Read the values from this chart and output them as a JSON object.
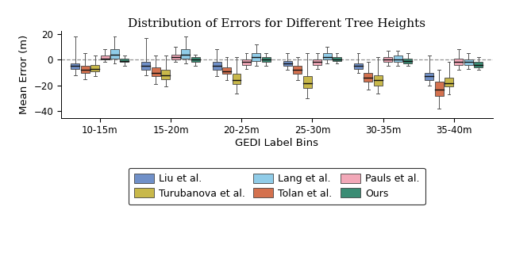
{
  "title": "Distribution of Errors for Different Tree Heights",
  "xlabel": "GEDI Label Bins",
  "ylabel": "Mean Error (m)",
  "ylim": [
    -45,
    22
  ],
  "yticks": [
    -40,
    -20,
    0,
    20
  ],
  "bins": [
    "10-15m",
    "15-20m",
    "20-25m",
    "25-30m",
    "30-35m",
    "35-40m"
  ],
  "methods": [
    "Liu et al.",
    "Tolan et al.",
    "Turubanova et al.",
    "Pauls et al.",
    "Lang et al.",
    "Ours"
  ],
  "colors": [
    "#7090c8",
    "#d4714e",
    "#c8b84a",
    "#f2a8b8",
    "#90cce8",
    "#3a8c74"
  ],
  "box_data": {
    "Liu et al.": {
      "10-15m": [
        -12,
        -7,
        -5,
        -3,
        18
      ],
      "15-20m": [
        -12,
        -8,
        -5,
        -2,
        17
      ],
      "20-25m": [
        -13,
        -8,
        -5,
        -2,
        8
      ],
      "25-30m": [
        -8,
        -5,
        -3,
        -1,
        5
      ],
      "30-35m": [
        -10,
        -7,
        -5,
        -3,
        5
      ],
      "35-40m": [
        -20,
        -16,
        -13,
        -10,
        3
      ]
    },
    "Tolan et al.": {
      "10-15m": [
        -15,
        -10,
        -8,
        -5,
        5
      ],
      "15-20m": [
        -19,
        -13,
        -10,
        -6,
        3
      ],
      "20-25m": [
        -16,
        -11,
        -9,
        -6,
        2
      ],
      "25-30m": [
        -16,
        -11,
        -8,
        -5,
        2
      ],
      "30-35m": [
        -23,
        -17,
        -14,
        -10,
        -2
      ],
      "35-40m": [
        -38,
        -28,
        -23,
        -17,
        -8
      ]
    },
    "Turubanova et al.": {
      "10-15m": [
        -13,
        -9,
        -7,
        -4,
        3
      ],
      "15-20m": [
        -21,
        -15,
        -12,
        -8,
        3
      ],
      "20-25m": [
        -26,
        -19,
        -16,
        -11,
        2
      ],
      "25-30m": [
        -30,
        -22,
        -18,
        -13,
        5
      ],
      "30-35m": [
        -26,
        -20,
        -16,
        -12,
        2
      ],
      "35-40m": [
        -27,
        -21,
        -18,
        -14,
        -2
      ]
    },
    "Pauls et al.": {
      "10-15m": [
        -2,
        0,
        1,
        3,
        8
      ],
      "15-20m": [
        -2,
        0,
        2,
        4,
        10
      ],
      "20-25m": [
        -7,
        -4,
        -2,
        0,
        5
      ],
      "25-30m": [
        -7,
        -4,
        -2,
        0,
        5
      ],
      "30-35m": [
        -5,
        -2,
        0,
        2,
        7
      ],
      "35-40m": [
        -8,
        -4,
        -2,
        1,
        8
      ]
    },
    "Lang et al.": {
      "10-15m": [
        -3,
        1,
        4,
        8,
        18
      ],
      "15-20m": [
        -3,
        1,
        4,
        8,
        18
      ],
      "20-25m": [
        -5,
        -1,
        2,
        5,
        12
      ],
      "25-30m": [
        -3,
        0,
        2,
        5,
        10
      ],
      "30-35m": [
        -5,
        -2,
        0,
        3,
        7
      ],
      "35-40m": [
        -7,
        -4,
        -2,
        0,
        5
      ]
    },
    "Ours": {
      "10-15m": [
        -5,
        -2,
        -1,
        1,
        3
      ],
      "15-20m": [
        -5,
        -2,
        0,
        2,
        4
      ],
      "20-25m": [
        -5,
        -2,
        0,
        2,
        5
      ],
      "25-30m": [
        -3,
        -1,
        0,
        2,
        5
      ],
      "30-35m": [
        -5,
        -3,
        -1,
        1,
        5
      ],
      "35-40m": [
        -8,
        -6,
        -4,
        -2,
        2
      ]
    }
  }
}
